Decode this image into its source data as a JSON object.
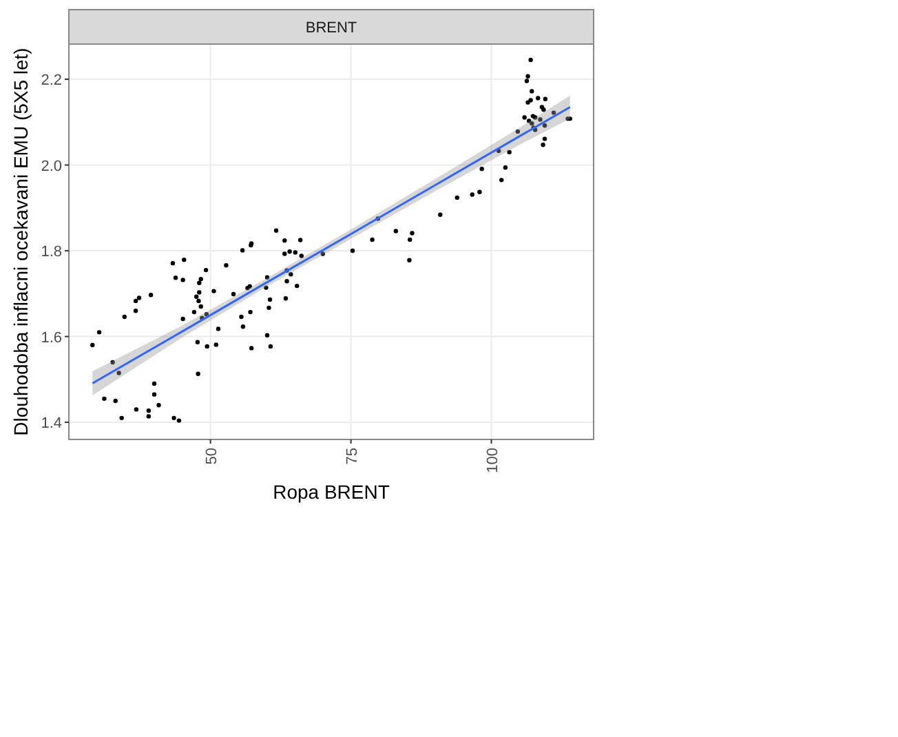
{
  "chart_data": {
    "type": "scatter",
    "subtitle": "BRENT",
    "xlabel": "Ropa BRENT",
    "ylabel": "Dlouhodoba inflacni ocekavani EMU (5X5 let)",
    "xlim": [
      24.8,
      118.2
    ],
    "xticks": [
      50,
      75,
      100
    ],
    "ylim": [
      1.36,
      2.282
    ],
    "yticks": [
      {
        "value": 1.4,
        "label": "1.4"
      },
      {
        "value": 1.6,
        "label": "1.6"
      },
      {
        "value": 1.8,
        "label": "1.8"
      },
      {
        "value": 2.0,
        "label": "2.0"
      },
      {
        "value": 2.2,
        "label": "2.2"
      }
    ],
    "grid": true,
    "series": [
      {
        "marker": "circle",
        "color": "#000000",
        "x": [
          29.0,
          30.2,
          31.1,
          32.6,
          33.1,
          33.7,
          34.2,
          34.7,
          36.7,
          36.7,
          37.3,
          36.8,
          39.0,
          39.0,
          39.4,
          40.0,
          40.0,
          40.8,
          43.3,
          43.8,
          43.5,
          44.4,
          45.3,
          45.1,
          45.1,
          47.1,
          47.5,
          47.7,
          47.8,
          47.9,
          48.0,
          48.0,
          48.3,
          48.3,
          48.5,
          49.2,
          49.3,
          49.4,
          50.6,
          51.0,
          51.4,
          52.8,
          54.1,
          55.5,
          55.7,
          55.8,
          56.6,
          57.0,
          57.1,
          57.2,
          57.3,
          57.3,
          59.9,
          60.1,
          60.1,
          60.4,
          60.6,
          60.7,
          61.7,
          63.2,
          63.2,
          63.4,
          63.6,
          63.6,
          64.1,
          64.3,
          65.1,
          65.4,
          66.0,
          66.2,
          70.0,
          75.3,
          78.8,
          79.8,
          83.0,
          85.4,
          85.5,
          85.9,
          90.9,
          93.9,
          96.6,
          97.9,
          98.3,
          101.3,
          101.8,
          102.5,
          103.2,
          104.7,
          105.9,
          106.3,
          106.5,
          106.7,
          107.0,
          107.0,
          107.2,
          107.2,
          107.4,
          107.5,
          107.8,
          107.8,
          108.3,
          108.7,
          109.0,
          109.3,
          109.5,
          109.6,
          109.5,
          109.2,
          111.1,
          113.6,
          114.0,
          106.5
        ],
        "values": [
          1.58,
          1.61,
          1.455,
          1.54,
          1.45,
          1.515,
          1.41,
          1.646,
          1.66,
          1.683,
          1.69,
          1.43,
          1.414,
          1.427,
          1.697,
          1.49,
          1.465,
          1.44,
          1.771,
          1.737,
          1.41,
          1.404,
          1.779,
          1.732,
          1.641,
          1.657,
          1.693,
          1.587,
          1.513,
          1.683,
          1.703,
          1.725,
          1.734,
          1.67,
          1.643,
          1.755,
          1.652,
          1.577,
          1.706,
          1.581,
          1.618,
          1.766,
          1.699,
          1.646,
          1.801,
          1.623,
          1.713,
          1.717,
          1.657,
          1.813,
          1.817,
          1.573,
          1.714,
          1.738,
          1.603,
          1.667,
          1.686,
          1.577,
          1.847,
          1.824,
          1.793,
          1.689,
          1.729,
          1.754,
          1.798,
          1.745,
          1.796,
          1.718,
          1.825,
          1.788,
          1.793,
          1.8,
          1.826,
          1.875,
          1.846,
          1.778,
          1.826,
          1.841,
          1.884,
          1.924,
          1.931,
          1.937,
          1.991,
          2.033,
          1.965,
          1.994,
          2.03,
          2.078,
          2.111,
          2.196,
          2.207,
          2.103,
          2.151,
          2.245,
          2.172,
          2.097,
          2.114,
          2.087,
          2.082,
          2.111,
          2.156,
          2.106,
          2.135,
          2.129,
          2.092,
          2.154,
          2.061,
          2.047,
          2.122,
          2.108,
          2.108,
          2.146
        ]
      },
      {
        "type": "line",
        "marker": "none",
        "color": "#3366ff",
        "x": [
          29,
          45,
          60,
          75,
          90,
          105,
          114
        ],
        "values": [
          1.491,
          1.612,
          1.726,
          1.839,
          1.953,
          2.067,
          2.135
        ],
        "lower": [
          1.463,
          1.598,
          1.716,
          1.828,
          1.939,
          2.047,
          2.108
        ],
        "upper": [
          1.519,
          1.626,
          1.736,
          1.85,
          1.967,
          2.087,
          2.162
        ]
      }
    ]
  }
}
